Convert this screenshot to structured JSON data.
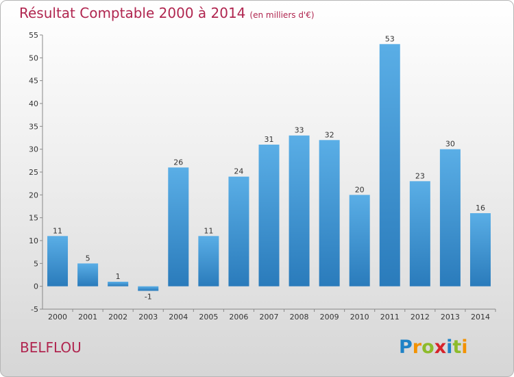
{
  "title": "Résultat Comptable 2000 à 2014",
  "subtitle": "(en milliers d'€)",
  "city": "BELFLOU",
  "logo": {
    "text": "Proxiti",
    "letters": [
      {
        "ch": "P",
        "color": "#1f82c6"
      },
      {
        "ch": "r",
        "color": "#f39200"
      },
      {
        "ch": "o",
        "color": "#8dbb2b"
      },
      {
        "ch": "x",
        "color": "#d6232a"
      },
      {
        "ch": "i",
        "color": "#1f82c6"
      },
      {
        "ch": "t",
        "color": "#8dbb2b"
      },
      {
        "ch": "i",
        "color": "#f39200"
      }
    ]
  },
  "colors": {
    "bar_top": "#5aaee6",
    "bar_bottom": "#2a7bbb",
    "title": "#b0254f"
  },
  "chart_data": {
    "type": "bar",
    "categories": [
      "2000",
      "2001",
      "2002",
      "2003",
      "2004",
      "2005",
      "2006",
      "2007",
      "2008",
      "2009",
      "2010",
      "2011",
      "2012",
      "2013",
      "2014"
    ],
    "values": [
      11,
      5,
      1,
      -1,
      26,
      11,
      24,
      31,
      33,
      32,
      20,
      53,
      23,
      30,
      16
    ],
    "ylim": [
      -5,
      55
    ],
    "yticks": [
      -5,
      0,
      5,
      10,
      15,
      20,
      25,
      30,
      35,
      40,
      45,
      50,
      55
    ],
    "grid": false
  }
}
